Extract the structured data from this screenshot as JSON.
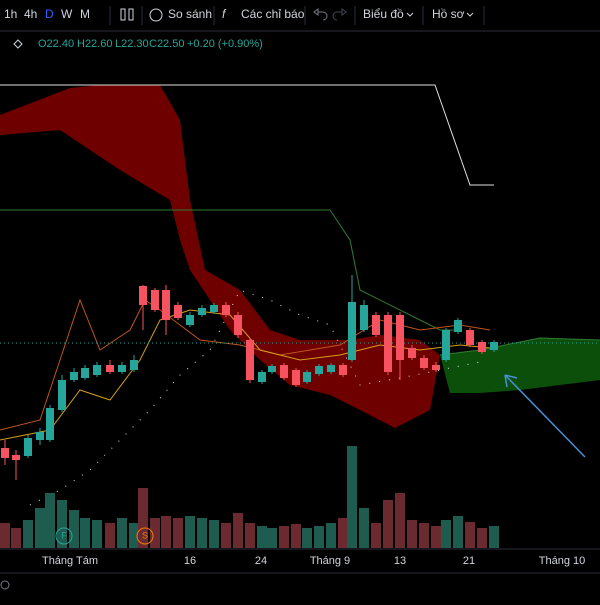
{
  "toolbar": {
    "intervals": [
      "1h",
      "4h",
      "D",
      "W",
      "M"
    ],
    "compare": "So sánh",
    "indicators": "Các chỉ báo",
    "chart_type": "Biểu đồ",
    "profile": "Hồ sơ"
  },
  "legend": {
    "open": "O22.40",
    "high": "H22.60",
    "low": "L22.30",
    "close": "C22.50",
    "change": "+0.20 (+0.90%)"
  },
  "markers": [
    "F",
    "S"
  ],
  "x_axis": [
    "Tháng Tám",
    "16",
    "24",
    "Tháng 9",
    "13",
    "21",
    "Tháng 10"
  ]
}
